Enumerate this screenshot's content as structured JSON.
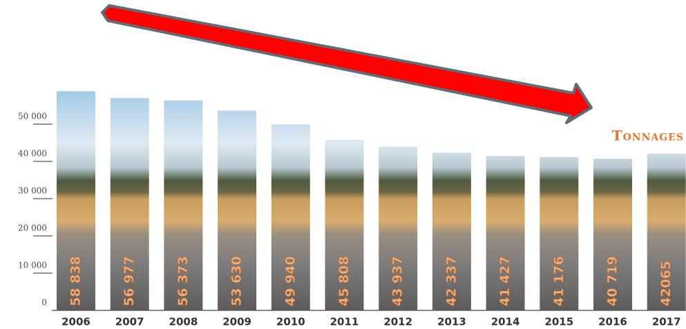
{
  "chart_data": {
    "type": "bar",
    "title": "Tonnages",
    "categories": [
      "2006",
      "2007",
      "2008",
      "2009",
      "2010",
      "2011",
      "2012",
      "2013",
      "2014",
      "2015",
      "2016",
      "2017"
    ],
    "values": [
      58838,
      56977,
      56373,
      53630,
      49940,
      45808,
      43937,
      42337,
      41427,
      41176,
      40719,
      42065
    ],
    "value_labels": [
      "58 838",
      "56 977",
      "56 373",
      "53 630",
      "49 940",
      "45 808",
      "43 937",
      "42 337",
      "41 427",
      "41 176",
      "40 719",
      "42065"
    ],
    "ylim": [
      0,
      60000
    ],
    "yticks": [
      0,
      {
        "value": 10000,
        "label": "10 000"
      },
      {
        "value": 20000,
        "label": "20 000"
      },
      {
        "value": 30000,
        "label": "30 000"
      },
      {
        "value": 40000,
        "label": "40 000"
      },
      {
        "value": 50000,
        "label": "50 000"
      }
    ]
  }
}
